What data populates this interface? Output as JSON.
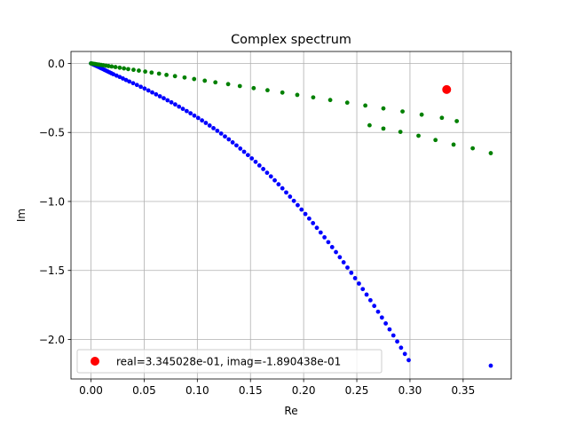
{
  "chart_data": {
    "type": "scatter",
    "title": "Complex spectrum",
    "xlabel": "Re",
    "ylabel": "Im",
    "xlim": [
      -0.0188,
      0.3952
    ],
    "ylim": [
      -2.2863,
      0.0867
    ],
    "xticks": [
      0.0,
      0.05,
      0.1,
      0.15,
      0.2,
      0.25,
      0.3,
      0.35
    ],
    "xtick_labels": [
      "0.00",
      "0.05",
      "0.10",
      "0.15",
      "0.20",
      "0.25",
      "0.30",
      "0.35"
    ],
    "yticks": [
      0.0,
      -0.5,
      -1.0,
      -1.5,
      -2.0
    ],
    "ytick_labels": [
      "0.0",
      "−0.5",
      "−1.0",
      "−1.5",
      "−2.0"
    ],
    "grid": true,
    "legend_position": "lower-left",
    "series": [
      {
        "color": "#0000ff",
        "marker_size": 2.4,
        "points": [
          [
            0.0,
            0.0
          ],
          [
            0.0011,
            -0.0038
          ],
          [
            0.0023,
            -0.0082
          ],
          [
            0.0037,
            -0.013
          ],
          [
            0.0051,
            -0.0182
          ],
          [
            0.0066,
            -0.0236
          ],
          [
            0.0081,
            -0.0292
          ],
          [
            0.0096,
            -0.035
          ],
          [
            0.0112,
            -0.041
          ],
          [
            0.0128,
            -0.047
          ],
          [
            0.0144,
            -0.053
          ],
          [
            0.016,
            -0.059
          ],
          [
            0.0176,
            -0.065
          ],
          [
            0.0192,
            -0.071
          ],
          [
            0.021,
            -0.078
          ],
          [
            0.024,
            -0.088
          ],
          [
            0.027,
            -0.098
          ],
          [
            0.03,
            -0.109
          ],
          [
            0.033,
            -0.12
          ],
          [
            0.036,
            -0.131
          ],
          [
            0.0396,
            -0.143
          ],
          [
            0.0432,
            -0.156
          ],
          [
            0.0468,
            -0.169
          ],
          [
            0.0504,
            -0.182
          ],
          [
            0.054,
            -0.196
          ],
          [
            0.0576,
            -0.21
          ],
          [
            0.0612,
            -0.224
          ],
          [
            0.0648,
            -0.238
          ],
          [
            0.0684,
            -0.252
          ],
          [
            0.072,
            -0.267
          ],
          [
            0.0756,
            -0.282
          ],
          [
            0.0792,
            -0.297
          ],
          [
            0.0828,
            -0.313
          ],
          [
            0.0864,
            -0.329
          ],
          [
            0.09,
            -0.345
          ],
          [
            0.0936,
            -0.361
          ],
          [
            0.0972,
            -0.378
          ],
          [
            0.1008,
            -0.395
          ],
          [
            0.1044,
            -0.413
          ],
          [
            0.108,
            -0.431
          ],
          [
            0.1116,
            -0.45
          ],
          [
            0.1152,
            -0.469
          ],
          [
            0.1188,
            -0.488
          ],
          [
            0.1224,
            -0.508
          ],
          [
            0.126,
            -0.529
          ],
          [
            0.1296,
            -0.55
          ],
          [
            0.1332,
            -0.572
          ],
          [
            0.1368,
            -0.594
          ],
          [
            0.1404,
            -0.617
          ],
          [
            0.144,
            -0.64
          ],
          [
            0.1476,
            -0.664
          ],
          [
            0.1512,
            -0.688
          ],
          [
            0.1548,
            -0.713
          ],
          [
            0.1584,
            -0.739
          ],
          [
            0.162,
            -0.765
          ],
          [
            0.1656,
            -0.792
          ],
          [
            0.1692,
            -0.819
          ],
          [
            0.1728,
            -0.847
          ],
          [
            0.1764,
            -0.876
          ],
          [
            0.18,
            -0.905
          ],
          [
            0.1836,
            -0.935
          ],
          [
            0.1872,
            -0.965
          ],
          [
            0.1908,
            -0.996
          ],
          [
            0.1944,
            -1.027
          ],
          [
            0.198,
            -1.059
          ],
          [
            0.2016,
            -1.091
          ],
          [
            0.2052,
            -1.124
          ],
          [
            0.2088,
            -1.157
          ],
          [
            0.2124,
            -1.191
          ],
          [
            0.216,
            -1.225
          ],
          [
            0.2196,
            -1.26
          ],
          [
            0.2232,
            -1.295
          ],
          [
            0.2268,
            -1.331
          ],
          [
            0.2304,
            -1.367
          ],
          [
            0.234,
            -1.404
          ],
          [
            0.2376,
            -1.441
          ],
          [
            0.2412,
            -1.479
          ],
          [
            0.2448,
            -1.517
          ],
          [
            0.2484,
            -1.556
          ],
          [
            0.252,
            -1.595
          ],
          [
            0.2556,
            -1.635
          ],
          [
            0.2592,
            -1.675
          ],
          [
            0.2628,
            -1.716
          ],
          [
            0.2664,
            -1.757
          ],
          [
            0.27,
            -1.799
          ],
          [
            0.2736,
            -1.841
          ],
          [
            0.2772,
            -1.884
          ],
          [
            0.2808,
            -1.927
          ],
          [
            0.2844,
            -1.971
          ],
          [
            0.288,
            -2.015
          ],
          [
            0.2916,
            -2.06
          ],
          [
            0.2952,
            -2.105
          ],
          [
            0.2988,
            -2.15
          ],
          [
            0.376,
            -2.19
          ]
        ]
      },
      {
        "color": "#008000",
        "marker_size": 2.4,
        "points": [
          [
            0.0,
            0.0
          ],
          [
            0.0012,
            -0.001
          ],
          [
            0.0025,
            -0.0025
          ],
          [
            0.004,
            -0.0045
          ],
          [
            0.0056,
            -0.0065
          ],
          [
            0.0075,
            -0.0085
          ],
          [
            0.0095,
            -0.011
          ],
          [
            0.0115,
            -0.013
          ],
          [
            0.014,
            -0.016
          ],
          [
            0.0165,
            -0.019
          ],
          [
            0.0195,
            -0.022
          ],
          [
            0.023,
            -0.026
          ],
          [
            0.027,
            -0.031
          ],
          [
            0.031,
            -0.036
          ],
          [
            0.035,
            -0.041
          ],
          [
            0.04,
            -0.046
          ],
          [
            0.045,
            -0.052
          ],
          [
            0.051,
            -0.059
          ],
          [
            0.057,
            -0.066
          ],
          [
            0.064,
            -0.074
          ],
          [
            0.071,
            -0.083
          ],
          [
            0.079,
            -0.092
          ],
          [
            0.088,
            -0.102
          ],
          [
            0.097,
            -0.113
          ],
          [
            0.107,
            -0.125
          ],
          [
            0.117,
            -0.137
          ],
          [
            0.129,
            -0.15
          ],
          [
            0.14,
            -0.164
          ],
          [
            0.153,
            -0.179
          ],
          [
            0.166,
            -0.194
          ],
          [
            0.18,
            -0.211
          ],
          [
            0.194,
            -0.228
          ],
          [
            0.209,
            -0.246
          ],
          [
            0.225,
            -0.265
          ],
          [
            0.241,
            -0.284
          ],
          [
            0.258,
            -0.305
          ],
          [
            0.275,
            -0.326
          ],
          [
            0.293,
            -0.348
          ],
          [
            0.311,
            -0.371
          ],
          [
            0.33,
            -0.394
          ],
          [
            0.344,
            -0.418
          ],
          [
            0.262,
            -0.448
          ],
          [
            0.275,
            -0.472
          ],
          [
            0.291,
            -0.496
          ],
          [
            0.308,
            -0.524
          ],
          [
            0.324,
            -0.555
          ],
          [
            0.341,
            -0.588
          ],
          [
            0.359,
            -0.615
          ],
          [
            0.376,
            -0.65
          ]
        ]
      },
      {
        "color": "#ff0000",
        "marker_size": 5,
        "legend": "real=3.345028e-01, imag=-1.890438e-01",
        "points": [
          [
            0.3345028,
            -0.1890438
          ]
        ]
      }
    ]
  }
}
